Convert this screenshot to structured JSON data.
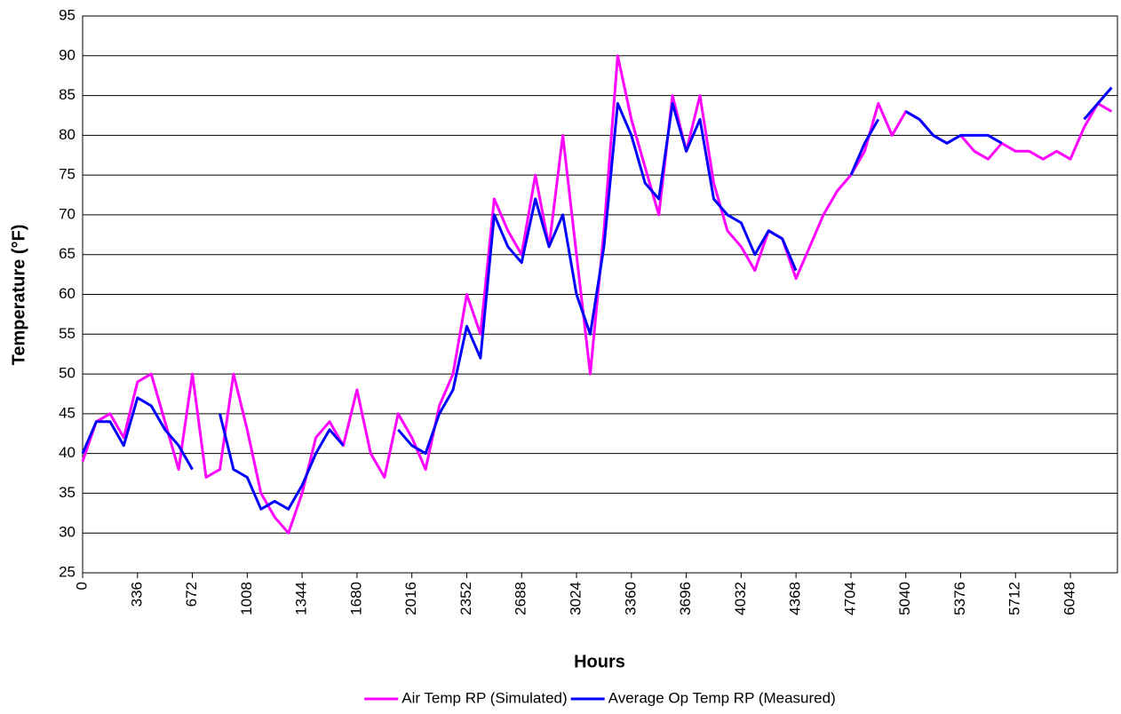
{
  "chart_data": {
    "type": "line",
    "xlabel": "Hours",
    "ylabel": "Temperature (°F)",
    "x": [
      0,
      84,
      168,
      252,
      336,
      420,
      504,
      588,
      672,
      756,
      840,
      924,
      1008,
      1092,
      1176,
      1260,
      1344,
      1428,
      1512,
      1596,
      1680,
      1764,
      1848,
      1932,
      2016,
      2100,
      2184,
      2268,
      2352,
      2436,
      2520,
      2604,
      2688,
      2772,
      2856,
      2940,
      3024,
      3108,
      3192,
      3276,
      3360,
      3444,
      3528,
      3612,
      3696,
      3780,
      3864,
      3948,
      4032,
      4116,
      4200,
      4284,
      4368,
      4452,
      4536,
      4620,
      4704,
      4788,
      4872,
      4956,
      5040,
      5124,
      5208,
      5292,
      5376,
      5460,
      5544,
      5628,
      5712,
      5796,
      5880,
      5964,
      6048,
      6132,
      6216,
      6300
    ],
    "series": [
      {
        "name": "Air Temp RP (Simulated)",
        "color": "#ff00ff",
        "values": [
          39,
          44,
          45,
          42,
          49,
          50,
          44,
          38,
          50,
          37,
          38,
          50,
          43,
          35,
          32,
          30,
          35,
          42,
          44,
          41,
          48,
          40,
          37,
          45,
          42,
          38,
          46,
          50,
          60,
          55,
          72,
          68,
          65,
          75,
          66,
          80,
          65,
          50,
          68,
          90,
          82,
          76,
          70,
          85,
          78,
          85,
          74,
          68,
          66,
          63,
          68,
          67,
          62,
          66,
          70,
          73,
          75,
          78,
          84,
          80,
          83,
          82,
          80,
          79,
          80,
          78,
          77,
          79,
          78,
          78,
          77,
          78,
          77,
          81,
          84,
          83
        ]
      },
      {
        "name": "Average Op Temp RP  (Measured)",
        "color": "#0000ff",
        "values": [
          40,
          44,
          44,
          41,
          47,
          46,
          43,
          41,
          38,
          null,
          45,
          38,
          37,
          33,
          34,
          33,
          36,
          40,
          43,
          41,
          null,
          null,
          null,
          43,
          41,
          40,
          45,
          48,
          56,
          52,
          70,
          66,
          64,
          72,
          66,
          70,
          60,
          55,
          66,
          84,
          80,
          74,
          72,
          84,
          78,
          82,
          72,
          70,
          69,
          65,
          68,
          67,
          63,
          null,
          null,
          null,
          75,
          79,
          82,
          null,
          83,
          82,
          80,
          79,
          80,
          80,
          80,
          79,
          null,
          null,
          null,
          null,
          null,
          82,
          84,
          86
        ]
      }
    ],
    "xlim": [
      0,
      6336
    ],
    "xticks": [
      0,
      336,
      672,
      1008,
      1344,
      1680,
      2016,
      2352,
      2688,
      3024,
      3360,
      3696,
      4032,
      4368,
      4704,
      5040,
      5376,
      5712,
      6048
    ],
    "ylim": [
      25,
      95
    ],
    "yticks": [
      25,
      30,
      35,
      40,
      45,
      50,
      55,
      60,
      65,
      70,
      75,
      80,
      85,
      90,
      95
    ],
    "grid": true,
    "legend": "bottom"
  }
}
